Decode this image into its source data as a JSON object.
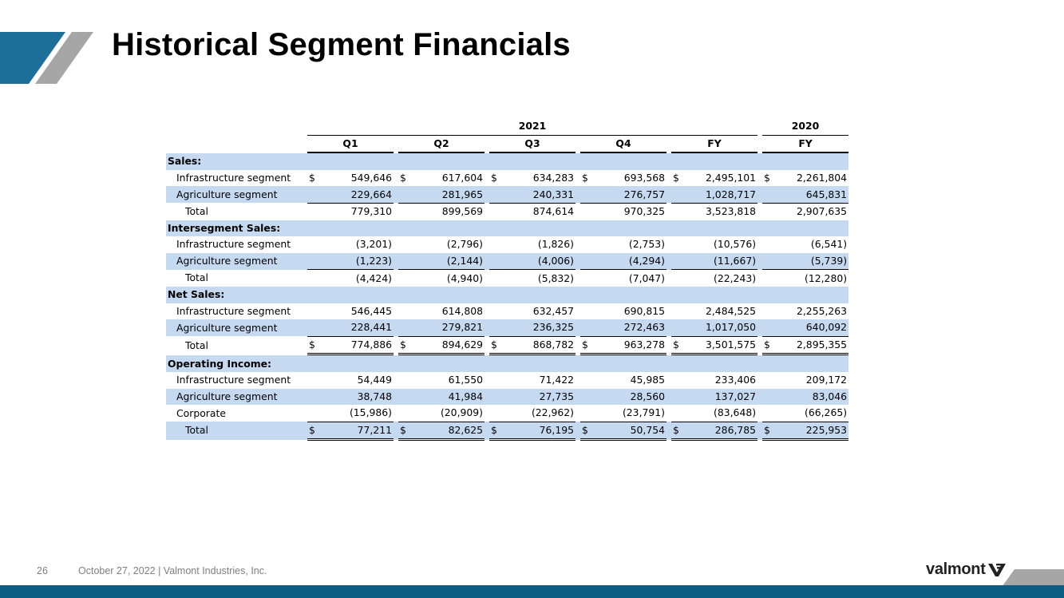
{
  "title": "Historical Segment Financials",
  "colors": {
    "accent_blue": "#0d5c86",
    "accent_gray": "#a6a6a6",
    "row_shade": "#c5d9f1"
  },
  "table": {
    "year_headers": [
      "2021",
      "2020"
    ],
    "columns": [
      "Q1",
      "Q2",
      "Q3",
      "Q4",
      "FY",
      "FY"
    ],
    "currency_symbol": "$",
    "sections": [
      {
        "title": "Sales:",
        "rows": [
          {
            "label": "Infrastructure segment",
            "values": [
              "549,646",
              "617,604",
              "634,283",
              "693,568",
              "2,495,101",
              "2,261,804"
            ]
          },
          {
            "label": "Agriculture segment",
            "values": [
              "229,664",
              "281,965",
              "240,331",
              "276,757",
              "1,028,717",
              "645,831"
            ]
          },
          {
            "label": "Total",
            "values": [
              "779,310",
              "899,569",
              "874,614",
              "970,325",
              "3,523,818",
              "2,907,635"
            ]
          }
        ]
      },
      {
        "title": "Intersegment Sales:",
        "rows": [
          {
            "label": "Infrastructure segment",
            "values": [
              "(3,201)",
              "(2,796)",
              "(1,826)",
              "(2,753)",
              "(10,576)",
              "(6,541)"
            ]
          },
          {
            "label": "Agriculture segment",
            "values": [
              "(1,223)",
              "(2,144)",
              "(4,006)",
              "(4,294)",
              "(11,667)",
              "(5,739)"
            ]
          },
          {
            "label": "Total",
            "values": [
              "(4,424)",
              "(4,940)",
              "(5,832)",
              "(7,047)",
              "(22,243)",
              "(12,280)"
            ]
          }
        ]
      },
      {
        "title": "Net Sales:",
        "rows": [
          {
            "label": "Infrastructure segment",
            "values": [
              "546,445",
              "614,808",
              "632,457",
              "690,815",
              "2,484,525",
              "2,255,263"
            ]
          },
          {
            "label": "Agriculture segment",
            "values": [
              "228,441",
              "279,821",
              "236,325",
              "272,463",
              "1,017,050",
              "640,092"
            ]
          },
          {
            "label": "Total",
            "values": [
              "774,886",
              "894,629",
              "868,782",
              "963,278",
              "3,501,575",
              "2,895,355"
            ]
          }
        ]
      },
      {
        "title": "Operating Income:",
        "rows": [
          {
            "label": "Infrastructure segment",
            "values": [
              "54,449",
              "61,550",
              "71,422",
              "45,985",
              "233,406",
              "209,172"
            ]
          },
          {
            "label": "Agriculture segment",
            "values": [
              "38,748",
              "41,984",
              "27,735",
              "28,560",
              "137,027",
              "83,046"
            ]
          },
          {
            "label": "Corporate",
            "values": [
              "(15,986)",
              "(20,909)",
              "(22,962)",
              "(23,791)",
              "(83,648)",
              "(66,265)"
            ]
          },
          {
            "label": "Total",
            "values": [
              "77,211",
              "82,625",
              "76,195",
              "50,754",
              "286,785",
              "225,953"
            ]
          }
        ]
      }
    ]
  },
  "footer": {
    "page_number": "26",
    "text": "October 27, 2022  |  Valmont Industries, Inc.",
    "logo_text": "valmont"
  }
}
